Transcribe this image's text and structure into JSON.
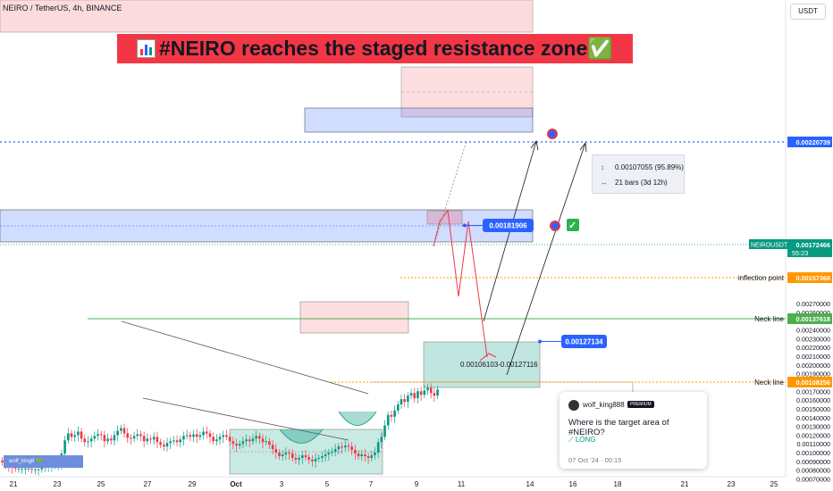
{
  "symbol_title": "NEIRO / TetherUS, 4h, BINANCE",
  "currency": "USDT",
  "banner": {
    "text": "#NEIRO reaches the staged resistance zone",
    "check": "✅"
  },
  "colors": {
    "up": "#089981",
    "down": "#f23645",
    "blue_line": "#2962ff",
    "orange": "#ff9800",
    "neck_green": "#4caf50",
    "banner_bg": "#f23645"
  },
  "chart_data": {
    "type": "candlestick",
    "timeframe": "4h",
    "x_ticks": [
      "21",
      "23",
      "25",
      "27",
      "29",
      "Oct",
      "3",
      "5",
      "7",
      "9",
      "11",
      "14",
      "16",
      "18",
      "21",
      "23",
      "25"
    ],
    "y_ticks": [
      "0.00270000",
      "0.00260000",
      "0.00250000",
      "0.00240000",
      "0.00230000",
      "0.00220000",
      "0.00210000",
      "0.00200000",
      "0.00190000",
      "0.00180000",
      "0.00170000",
      "0.00160000",
      "0.00150000",
      "0.00140000",
      "0.00130000",
      "0.00120000",
      "0.00110000",
      "0.00100000",
      "0.00090000",
      "0.00080000",
      "0.00070000"
    ],
    "ylim": [
      0.00066,
      0.0028
    ],
    "price_labels": [
      {
        "value": "0.00220739",
        "kind": "blue"
      },
      {
        "value": "0.00172466",
        "kind": "current",
        "symbol": "NEIROUSDT",
        "countdown": "55:23"
      },
      {
        "value": "0.00157368",
        "kind": "orange",
        "note": "inflection point"
      },
      {
        "value": "0.00137618",
        "kind": "green",
        "note": "Neck line"
      },
      {
        "value": "0.00108256",
        "kind": "orange",
        "note": "Neck line"
      }
    ],
    "annotations": [
      {
        "label": "0.00181906",
        "kind": "blue-tag"
      },
      {
        "label": "0.00127134",
        "kind": "blue-tag"
      },
      {
        "label": "0.00106103-0.00127116",
        "kind": "zone-text"
      }
    ],
    "measure": {
      "price_change": "0.00107055 (95.89%)",
      "bars": "21 bars (3d 12h)"
    }
  },
  "idea_card": {
    "user": "wolf_king888",
    "badge": "PREMIUM",
    "question": "Where is the target area of #NEIRO?",
    "direction": "LONG",
    "date": "07 Oct '24 · 00:15"
  },
  "watermark": "wolf_king8"
}
